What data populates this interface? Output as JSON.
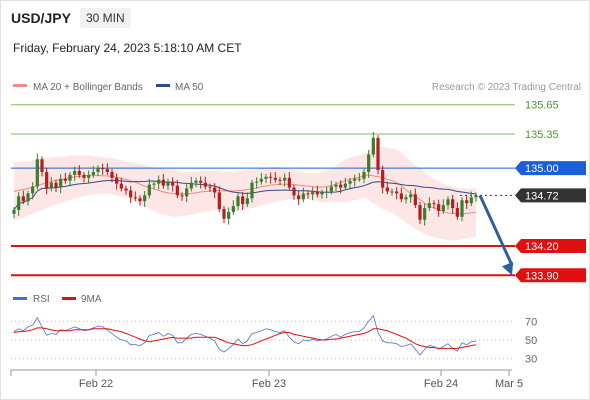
{
  "header": {
    "symbol": "USD/JPY",
    "interval": "30 MIN",
    "datetime": "Friday, February 24, 2023 5:18:10 AM CET"
  },
  "legend": {
    "ma20": "MA 20 + Bollinger Bands",
    "ma50": "MA 50",
    "credit": "Research © 2023 Trading Central",
    "rsi": "RSI",
    "ma9": "9MA"
  },
  "colors": {
    "ma20": "#f08a84",
    "ma50": "#2a4e8a",
    "bollinger_fill": "#fde6e6",
    "bull_candle": "#3a7d2c",
    "bear_candle": "#b61d1d",
    "support": "#e01010",
    "resistance_green": "#7cbf5a",
    "pivot_blue": "#1a5fd6",
    "current_price": "#333333",
    "arrow": "#2e5f9e",
    "rsi_line": "#4a6fd4",
    "rsi_ma": "#e01010"
  },
  "chart_data": [
    {
      "type": "candlestick",
      "x_ticks": [
        "Feb 22",
        "Feb 23",
        "Feb 24",
        "Mar 5"
      ],
      "ylim": [
        133.8,
        135.75
      ],
      "levels": [
        {
          "value": 135.65,
          "label": "135.65",
          "kind": "resistance"
        },
        {
          "value": 135.35,
          "label": "135.35",
          "kind": "resistance"
        },
        {
          "value": 135.0,
          "label": "135.00",
          "kind": "pivot"
        },
        {
          "value": 134.72,
          "label": "134.72",
          "kind": "current"
        },
        {
          "value": 134.2,
          "label": "134.20",
          "kind": "support"
        },
        {
          "value": 133.9,
          "label": "133.90",
          "kind": "support"
        }
      ],
      "close": [
        134.57,
        134.71,
        134.66,
        134.74,
        134.81,
        135.09,
        134.96,
        134.79,
        134.85,
        134.8,
        134.89,
        134.87,
        134.93,
        134.97,
        134.93,
        134.9,
        134.93,
        134.96,
        135.0,
        134.99,
        134.96,
        134.9,
        134.84,
        134.79,
        134.77,
        134.7,
        134.69,
        134.66,
        134.72,
        134.83,
        134.84,
        134.88,
        134.82,
        134.86,
        134.82,
        134.72,
        134.71,
        134.79,
        134.85,
        134.87,
        134.85,
        134.81,
        134.8,
        134.75,
        134.58,
        134.48,
        134.55,
        134.61,
        134.71,
        134.63,
        134.69,
        134.85,
        134.86,
        134.89,
        134.91,
        134.9,
        134.88,
        134.87,
        134.9,
        134.8,
        134.72,
        134.68,
        134.74,
        134.73,
        134.76,
        134.73,
        134.75,
        134.76,
        134.81,
        134.83,
        134.8,
        134.84,
        134.87,
        134.89,
        134.89,
        134.96,
        135.14,
        135.31,
        134.98,
        134.8,
        134.76,
        134.76,
        134.74,
        134.68,
        134.7,
        134.73,
        134.62,
        134.47,
        134.59,
        134.64,
        134.63,
        134.56,
        134.62,
        134.68,
        134.59,
        134.5,
        134.67,
        134.64,
        134.7,
        134.72
      ],
      "bollinger_upper": [
        135.06,
        135.06,
        135.07,
        135.07,
        135.08,
        135.09,
        135.1,
        135.11,
        135.11,
        135.12,
        135.12,
        135.12,
        135.13,
        135.13,
        135.13,
        135.13,
        135.13,
        135.12,
        135.12,
        135.11,
        135.11,
        135.1,
        135.09,
        135.08,
        135.07,
        135.06,
        135.05,
        135.04,
        135.03,
        135.02,
        135.01,
        135.0,
        134.99,
        134.98,
        134.98,
        134.97,
        134.96,
        134.96,
        134.96,
        134.96,
        134.97,
        134.97,
        134.97,
        134.97,
        134.97,
        134.96,
        134.96,
        134.96,
        134.97,
        134.97,
        134.98,
        134.98,
        134.99,
        135.0,
        135.0,
        135.01,
        135.01,
        135.01,
        135.0,
        134.99,
        134.98,
        134.97,
        134.96,
        134.95,
        134.95,
        134.95,
        134.96,
        134.97,
        134.99,
        135.02,
        135.06,
        135.09,
        135.11,
        135.12,
        135.13,
        135.15,
        135.18,
        135.2,
        135.21,
        135.22,
        135.21,
        135.2,
        135.19,
        135.16,
        135.11,
        135.07,
        135.03,
        135.0,
        134.96,
        134.92,
        134.89,
        134.87,
        134.84,
        134.82,
        134.81,
        134.8,
        134.79,
        134.79,
        134.79,
        134.79
      ],
      "bollinger_lower": [
        134.46,
        134.48,
        134.49,
        134.51,
        134.53,
        134.55,
        134.57,
        134.59,
        134.61,
        134.63,
        134.64,
        134.66,
        134.67,
        134.69,
        134.7,
        134.71,
        134.72,
        134.73,
        134.73,
        134.73,
        134.73,
        134.73,
        134.72,
        134.71,
        134.7,
        134.68,
        134.66,
        134.63,
        134.6,
        134.58,
        134.56,
        134.54,
        134.52,
        134.51,
        134.5,
        134.5,
        134.51,
        134.51,
        134.52,
        134.53,
        134.54,
        134.55,
        134.56,
        134.57,
        134.57,
        134.57,
        134.57,
        134.57,
        134.57,
        134.57,
        134.58,
        134.59,
        134.6,
        134.62,
        134.63,
        134.64,
        134.65,
        134.66,
        134.67,
        134.68,
        134.68,
        134.68,
        134.68,
        134.68,
        134.67,
        134.66,
        134.65,
        134.65,
        134.65,
        134.65,
        134.65,
        134.65,
        134.66,
        134.67,
        134.68,
        134.7,
        134.68,
        134.64,
        134.61,
        134.58,
        134.56,
        134.54,
        134.51,
        134.48,
        134.44,
        134.41,
        134.38,
        134.35,
        134.32,
        134.3,
        134.29,
        134.28,
        134.27,
        134.26,
        134.26,
        134.26,
        134.27,
        134.28,
        134.29,
        134.3
      ],
      "forecast_arrow": {
        "from": 134.72,
        "to": 133.9
      }
    },
    {
      "type": "line",
      "ylim": [
        20,
        80
      ],
      "y_ticks": [
        70,
        50,
        30
      ],
      "series": [
        {
          "name": "RSI",
          "values": [
            59,
            62,
            60,
            64,
            66,
            74,
            64,
            55,
            57,
            56,
            61,
            60,
            62,
            64,
            62,
            60,
            61,
            63,
            65,
            64,
            61,
            57,
            53,
            50,
            49,
            45,
            45,
            44,
            47,
            55,
            56,
            58,
            54,
            57,
            55,
            47,
            47,
            52,
            56,
            57,
            56,
            54,
            52,
            49,
            40,
            37,
            41,
            45,
            51,
            46,
            49,
            57,
            58,
            60,
            62,
            61,
            59,
            58,
            60,
            53,
            48,
            46,
            50,
            49,
            51,
            49,
            50,
            51,
            54,
            56,
            53,
            56,
            58,
            59,
            59,
            63,
            70,
            76,
            58,
            49,
            47,
            47,
            46,
            43,
            44,
            46,
            40,
            34,
            40,
            44,
            43,
            40,
            43,
            46,
            41,
            38,
            47,
            45,
            48,
            49
          ]
        },
        {
          "name": "9MA",
          "values": [
            58,
            59,
            59,
            60,
            61,
            63,
            63,
            62,
            61,
            60,
            60,
            60,
            60,
            61,
            61,
            61,
            61,
            62,
            62,
            62,
            62,
            61,
            60,
            59,
            57,
            55,
            53,
            51,
            49,
            48,
            49,
            50,
            51,
            52,
            53,
            52,
            52,
            52,
            52,
            53,
            53,
            53,
            53,
            53,
            51,
            49,
            47,
            46,
            45,
            44,
            44,
            45,
            47,
            49,
            51,
            53,
            55,
            57,
            58,
            58,
            56,
            55,
            54,
            53,
            52,
            51,
            50,
            50,
            51,
            51,
            52,
            53,
            54,
            55,
            56,
            57,
            59,
            62,
            62,
            61,
            60,
            58,
            56,
            54,
            52,
            49,
            46,
            44,
            43,
            42,
            42,
            41,
            41,
            41,
            41,
            41,
            42,
            43,
            44,
            45
          ]
        }
      ]
    }
  ]
}
